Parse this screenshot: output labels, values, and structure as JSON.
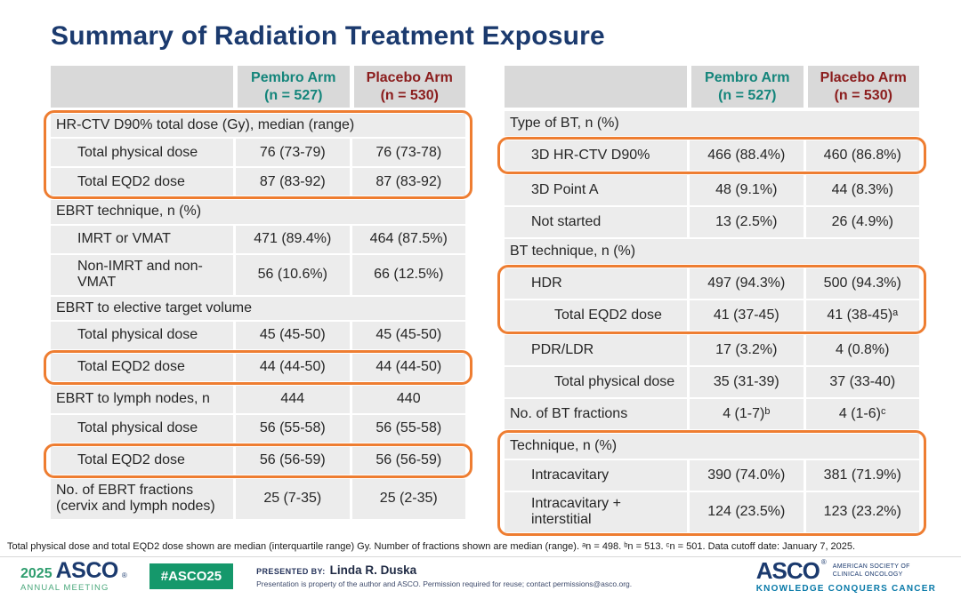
{
  "slide": {
    "title": "Summary of Radiation Treatment Exposure"
  },
  "colors": {
    "navy": "#1B3A6E",
    "pembro_teal": "#14857B",
    "placebo_red": "#8B1D1D",
    "highlight_orange": "#EE7D31",
    "header_gray": "#D9D9D9",
    "row_gray": "#ECECEC",
    "badge_green": "#15986B",
    "logo_green": "#2E9D6E",
    "slogan_blue": "#0879A8"
  },
  "left_table": {
    "header": {
      "arm1": "Pembro Arm\n(n = 527)",
      "arm2": "Placebo Arm\n(n = 530)"
    },
    "groups": [
      {
        "highlight": true,
        "rows": [
          {
            "type": "section",
            "indent": 0,
            "label": "HR-CTV D90% total dose (Gy), median (range)"
          },
          {
            "type": "data",
            "indent": 1,
            "label": "Total physical dose",
            "pembro": "76 (73-79)",
            "placebo": "76 (73-78)"
          },
          {
            "type": "data",
            "indent": 1,
            "label": "Total EQD2 dose",
            "pembro": "87 (83-92)",
            "placebo": "87 (83-92)"
          }
        ]
      },
      {
        "highlight": false,
        "rows": [
          {
            "type": "section",
            "indent": 0,
            "label": "EBRT technique, n (%)"
          },
          {
            "type": "data",
            "indent": 1,
            "label": "IMRT or VMAT",
            "pembro": "471 (89.4%)",
            "placebo": "464 (87.5%)"
          },
          {
            "type": "data",
            "indent": 1,
            "label": "Non-IMRT and non-VMAT",
            "pembro": "56 (10.6%)",
            "placebo": "66 (12.5%)"
          },
          {
            "type": "section",
            "indent": 0,
            "label": "EBRT to elective target volume"
          },
          {
            "type": "data",
            "indent": 1,
            "label": "Total physical dose",
            "pembro": "45 (45-50)",
            "placebo": "45 (45-50)"
          }
        ]
      },
      {
        "highlight": true,
        "rows": [
          {
            "type": "data",
            "indent": 1,
            "label": "Total EQD2 dose",
            "pembro": "44 (44-50)",
            "placebo": "44 (44-50)"
          }
        ]
      },
      {
        "highlight": false,
        "rows": [
          {
            "type": "data",
            "indent": 0,
            "label": "EBRT to lymph nodes, n",
            "pembro": "444",
            "placebo": "440"
          },
          {
            "type": "data",
            "indent": 1,
            "label": "Total physical dose",
            "pembro": "56 (55-58)",
            "placebo": "56 (55-58)"
          }
        ]
      },
      {
        "highlight": true,
        "rows": [
          {
            "type": "data",
            "indent": 1,
            "label": "Total EQD2 dose",
            "pembro": "56 (56-59)",
            "placebo": "56 (56-59)"
          }
        ]
      },
      {
        "highlight": false,
        "rows": [
          {
            "type": "data",
            "indent": 0,
            "label": "No. of EBRT fractions (cervix and lymph nodes)",
            "pembro": "25 (7-35)",
            "placebo": "25 (2-35)"
          }
        ]
      }
    ]
  },
  "right_table": {
    "header": {
      "arm1": "Pembro Arm\n(n = 527)",
      "arm2": "Placebo Arm\n(n = 530)"
    },
    "groups": [
      {
        "highlight": false,
        "rows": [
          {
            "type": "section",
            "indent": 0,
            "label": "Type of BT, n (%)"
          }
        ]
      },
      {
        "highlight": true,
        "rows": [
          {
            "type": "data",
            "indent": 1,
            "label": "3D HR-CTV D90%",
            "pembro": "466 (88.4%)",
            "placebo": "460 (86.8%)"
          }
        ]
      },
      {
        "highlight": false,
        "rows": [
          {
            "type": "data",
            "indent": 1,
            "label": "3D Point A",
            "pembro": "48 (9.1%)",
            "placebo": "44 (8.3%)"
          },
          {
            "type": "data",
            "indent": 1,
            "label": "Not started",
            "pembro": "13 (2.5%)",
            "placebo": "26 (4.9%)"
          },
          {
            "type": "section",
            "indent": 0,
            "label": "BT technique, n (%)"
          }
        ]
      },
      {
        "highlight": true,
        "rows": [
          {
            "type": "data",
            "indent": 1,
            "label": "HDR",
            "pembro": "497 (94.3%)",
            "placebo": "500 (94.3%)"
          },
          {
            "type": "data",
            "indent": 2,
            "label": "Total EQD2 dose",
            "pembro": "41 (37-45)",
            "placebo": "41 (38-45)ᵃ"
          }
        ]
      },
      {
        "highlight": false,
        "rows": [
          {
            "type": "data",
            "indent": 1,
            "label": "PDR/LDR",
            "pembro": "17 (3.2%)",
            "placebo": "4 (0.8%)"
          },
          {
            "type": "data",
            "indent": 2,
            "label": "Total physical dose",
            "pembro": "35 (31-39)",
            "placebo": "37 (33-40)"
          },
          {
            "type": "data",
            "indent": 0,
            "label": "No. of BT fractions",
            "pembro": "4 (1-7)ᵇ",
            "placebo": "4 (1-6)ᶜ"
          }
        ]
      },
      {
        "highlight": true,
        "rows": [
          {
            "type": "section",
            "indent": 0,
            "label": "Technique, n (%)"
          },
          {
            "type": "data",
            "indent": 1,
            "label": "Intracavitary",
            "pembro": "390 (74.0%)",
            "placebo": "381 (71.9%)"
          },
          {
            "type": "data",
            "indent": 1,
            "label": "Intracavitary + interstitial",
            "pembro": "124 (23.5%)",
            "placebo": "123 (23.2%)"
          }
        ]
      }
    ]
  },
  "footnote": "Total physical dose and total EQD2 dose shown are median (interquartile range) Gy. Number of fractions shown are median (range). ᵃn = 498. ᵇn = 513. ᶜn = 501. Data cutoff date: January 7, 2025.",
  "footer": {
    "meeting_year": "2025",
    "meeting_org": "ASCO",
    "meeting_reg": "®",
    "meeting_name": "ANNUAL MEETING",
    "hashtag": "#ASCO25",
    "presented_by_label": "PRESENTED BY:",
    "presenter": "Linda R. Duska",
    "disclaimer": "Presentation is property of the author and ASCO. Permission required for reuse; contact permissions@asco.org.",
    "org_name": "ASCO",
    "org_reg": "®",
    "org_tagline": "AMERICAN SOCIETY OF\nCLINICAL ONCOLOGY",
    "org_slogan": "KNOWLEDGE CONQUERS CANCER"
  }
}
